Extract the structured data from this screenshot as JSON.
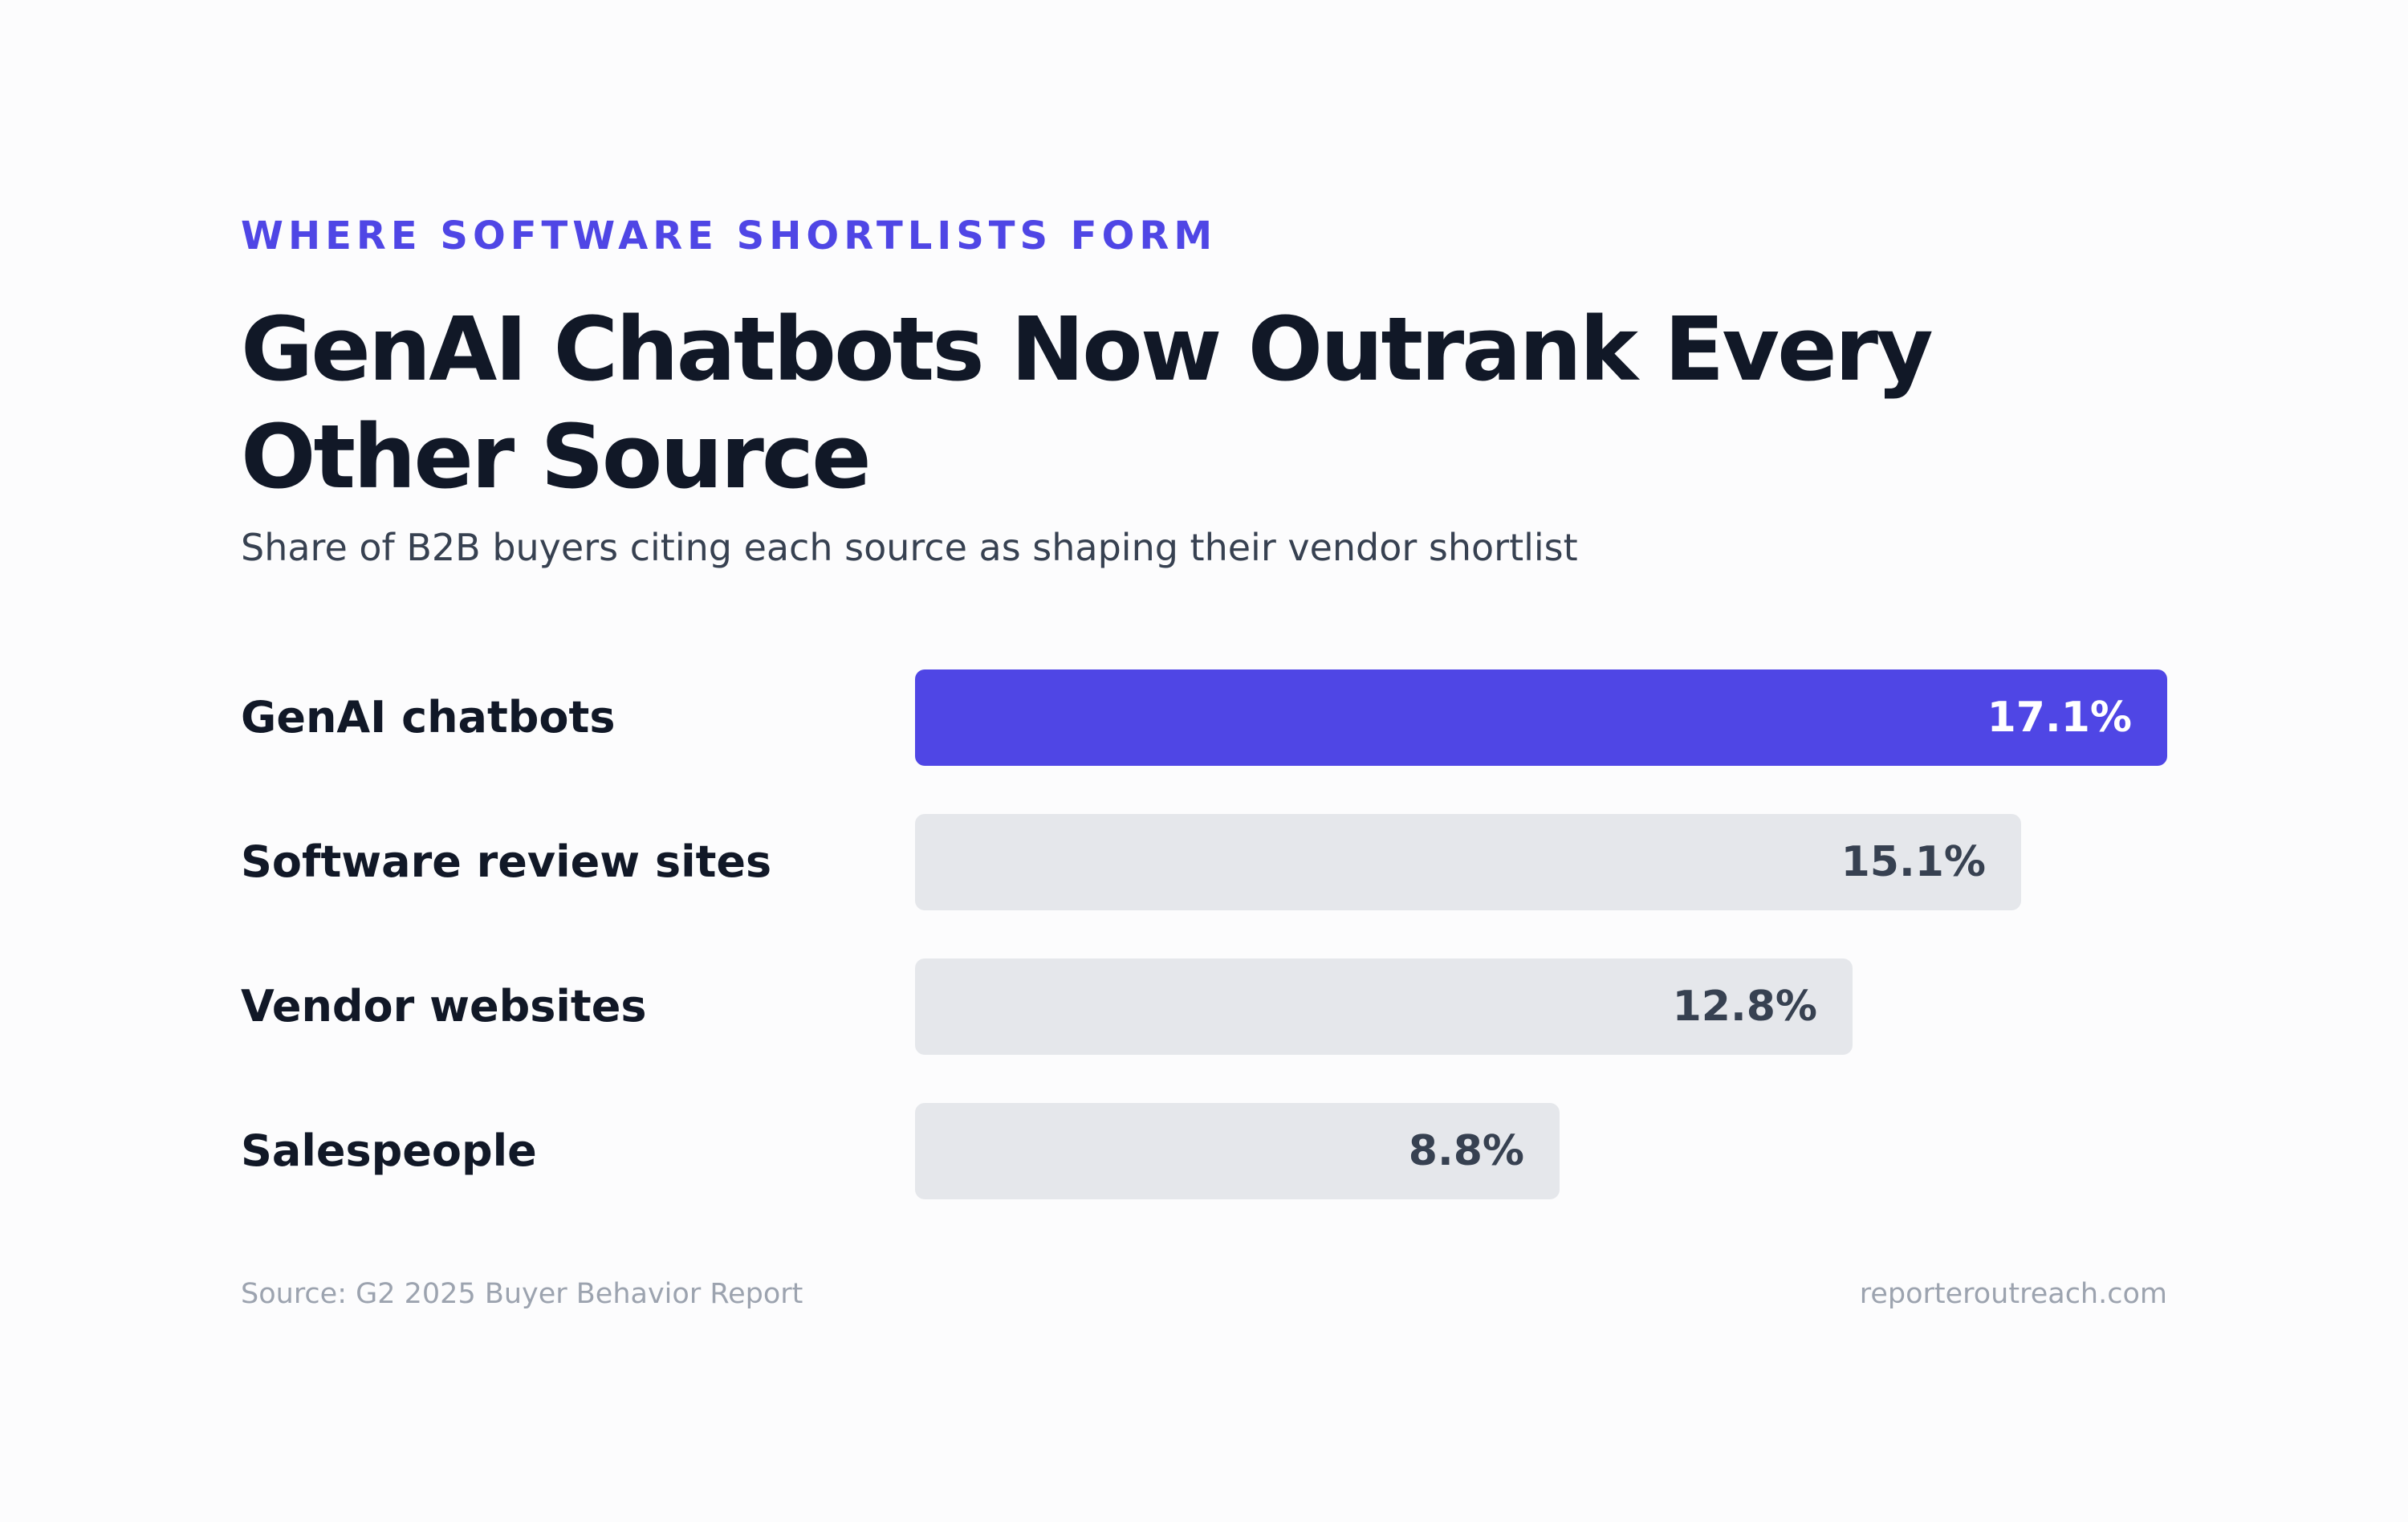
{
  "header": {
    "eyebrow": "WHERE SOFTWARE SHORTLISTS FORM",
    "title": "GenAI Chatbots Now Outrank Every Other Source",
    "subtitle": "Share of B2B buyers citing each source as shaping their vendor shortlist"
  },
  "footer": {
    "source": "Source: G2 2025 Buyer Behavior Report",
    "site": "reporteroutreach.com"
  },
  "colors": {
    "accent": "#4f46e5",
    "bar_default": "#e5e7eb",
    "text_dark": "#111827",
    "text_muted": "#9ca3af"
  },
  "chart_data": {
    "type": "bar",
    "orientation": "horizontal",
    "title": "GenAI Chatbots Now Outrank Every Other Source",
    "subtitle": "Share of B2B buyers citing each source as shaping their vendor shortlist",
    "categories": [
      "GenAI chatbots",
      "Software review sites",
      "Vendor websites",
      "Salespeople"
    ],
    "values": [
      17.1,
      15.1,
      12.8,
      8.8
    ],
    "value_labels": [
      "17.1%",
      "15.1%",
      "12.8%",
      "8.8%"
    ],
    "highlighted_category": "GenAI chatbots",
    "xlim": [
      0,
      17.1
    ],
    "grid": false,
    "legend": "none"
  }
}
